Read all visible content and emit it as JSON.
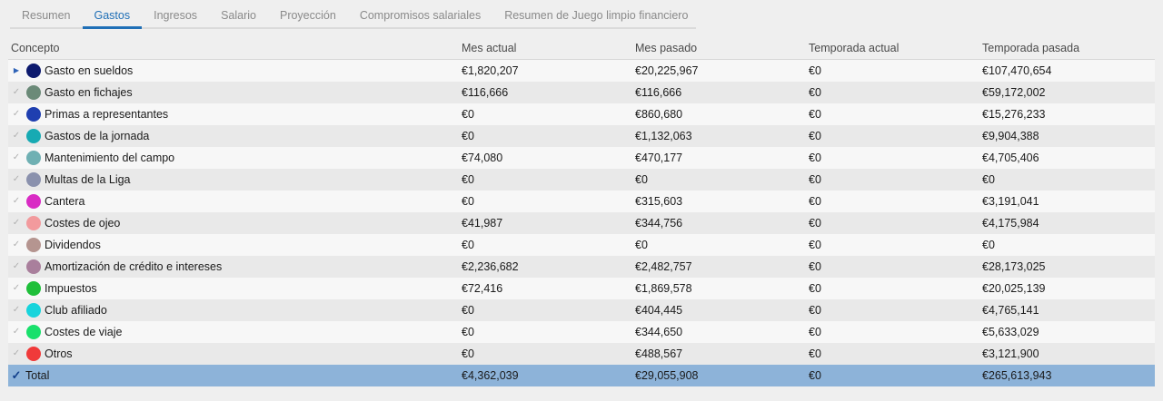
{
  "tabs": [
    {
      "label": "Resumen",
      "active": false
    },
    {
      "label": "Gastos",
      "active": true
    },
    {
      "label": "Ingresos",
      "active": false
    },
    {
      "label": "Salario",
      "active": false
    },
    {
      "label": "Proyección",
      "active": false
    },
    {
      "label": "Compromisos salariales",
      "active": false
    },
    {
      "label": "Resumen de Juego limpio financiero",
      "active": false
    }
  ],
  "table": {
    "headers": [
      "Concepto",
      "Mes actual",
      "Mes pasado",
      "Temporada actual",
      "Temporada pasada"
    ],
    "rows": [
      {
        "concept": "Gasto en sueldos",
        "color": "#0d1a6e",
        "lead_icon": "expand-arrow-icon",
        "mes_actual": "€1,820,207",
        "mes_pasado": "€20,225,967",
        "temporada_actual": "€0",
        "temporada_pasada": "€107,470,654"
      },
      {
        "concept": "Gasto en fichajes",
        "color": "#6b8a78",
        "lead_icon": "check-icon",
        "mes_actual": "€116,666",
        "mes_pasado": "€116,666",
        "temporada_actual": "€0",
        "temporada_pasada": "€59,172,002"
      },
      {
        "concept": "Primas a representantes",
        "color": "#1f3fb0",
        "lead_icon": "check-icon",
        "mes_actual": "€0",
        "mes_pasado": "€860,680",
        "temporada_actual": "€0",
        "temporada_pasada": "€15,276,233"
      },
      {
        "concept": "Gastos de la jornada",
        "color": "#17aab3",
        "lead_icon": "check-icon",
        "mes_actual": "€0",
        "mes_pasado": "€1,132,063",
        "temporada_actual": "€0",
        "temporada_pasada": "€9,904,388"
      },
      {
        "concept": "Mantenimiento del campo",
        "color": "#6fb0b3",
        "lead_icon": "check-icon",
        "mes_actual": "€74,080",
        "mes_pasado": "€470,177",
        "temporada_actual": "€0",
        "temporada_pasada": "€4,705,406"
      },
      {
        "concept": "Multas de la Liga",
        "color": "#8a91ad",
        "lead_icon": "check-icon",
        "mes_actual": "€0",
        "mes_pasado": "€0",
        "temporada_actual": "€0",
        "temporada_pasada": "€0"
      },
      {
        "concept": "Cantera",
        "color": "#d92bc4",
        "lead_icon": "check-icon",
        "mes_actual": "€0",
        "mes_pasado": "€315,603",
        "temporada_actual": "€0",
        "temporada_pasada": "€3,191,041"
      },
      {
        "concept": "Costes de ojeo",
        "color": "#f29a9d",
        "lead_icon": "check-icon",
        "mes_actual": "€41,987",
        "mes_pasado": "€344,756",
        "temporada_actual": "€0",
        "temporada_pasada": "€4,175,984"
      },
      {
        "concept": "Dividendos",
        "color": "#b59590",
        "lead_icon": "check-icon",
        "mes_actual": "€0",
        "mes_pasado": "€0",
        "temporada_actual": "€0",
        "temporada_pasada": "€0"
      },
      {
        "concept": "Amortización de crédito e intereses",
        "color": "#a97f9c",
        "lead_icon": "check-icon",
        "mes_actual": "€2,236,682",
        "mes_pasado": "€2,482,757",
        "temporada_actual": "€0",
        "temporada_pasada": "€28,173,025"
      },
      {
        "concept": "Impuestos",
        "color": "#1fbf3a",
        "lead_icon": "check-icon",
        "mes_actual": "€72,416",
        "mes_pasado": "€1,869,578",
        "temporada_actual": "€0",
        "temporada_pasada": "€20,025,139"
      },
      {
        "concept": "Club afiliado",
        "color": "#17d4dc",
        "lead_icon": "check-icon",
        "mes_actual": "€0",
        "mes_pasado": "€404,445",
        "temporada_actual": "€0",
        "temporada_pasada": "€4,765,141"
      },
      {
        "concept": "Costes de viaje",
        "color": "#19e06c",
        "lead_icon": "check-icon",
        "mes_actual": "€0",
        "mes_pasado": "€344,650",
        "temporada_actual": "€0",
        "temporada_pasada": "€5,633,029"
      },
      {
        "concept": "Otros",
        "color": "#f03a3a",
        "lead_icon": "check-icon",
        "mes_actual": "€0",
        "mes_pasado": "€488,567",
        "temporada_actual": "€0",
        "temporada_pasada": "€3,121,900"
      }
    ],
    "total": {
      "concept": "Total",
      "lead_icon": "check-icon",
      "mes_actual": "€4,362,039",
      "mes_pasado": "€29,055,908",
      "temporada_actual": "€0",
      "temporada_pasada": "€265,613,943"
    }
  },
  "colors": {
    "accent": "#1f6fb6",
    "total_row": "#8db3d9"
  }
}
